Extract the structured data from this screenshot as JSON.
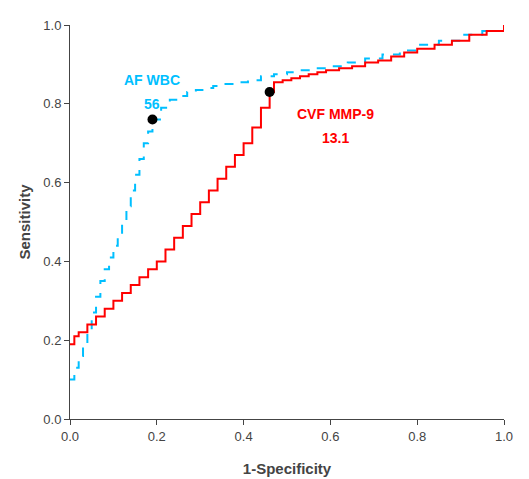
{
  "chart_data": {
    "type": "line",
    "xlabel": "1-Specificity",
    "ylabel": "Sensitivity",
    "xlim": [
      0.0,
      1.0
    ],
    "ylim": [
      0.0,
      1.0
    ],
    "xticks": [
      {
        "value": 0.0,
        "label": "0.0"
      },
      0.2,
      0.4,
      0.6,
      0.8,
      {
        "value": 1.0,
        "label": "1.0"
      }
    ],
    "yticks": [
      {
        "value": 0.0,
        "label": "0.0"
      },
      0.2,
      0.4,
      0.6,
      0.8,
      {
        "value": 1.0,
        "label": "1.0"
      }
    ],
    "grid": false,
    "series": [
      {
        "type": "step",
        "color": "#00BFFF",
        "line_style": "dashed",
        "x": [
          0.0,
          0.01,
          0.02,
          0.03,
          0.04,
          0.05,
          0.06,
          0.07,
          0.08,
          0.09,
          0.1,
          0.11,
          0.12,
          0.13,
          0.14,
          0.15,
          0.16,
          0.17,
          0.18,
          0.19,
          0.21,
          0.23,
          0.25,
          0.27,
          0.29,
          0.31,
          0.33,
          0.35,
          0.38,
          0.41,
          0.44,
          0.47,
          0.5,
          0.53,
          0.56,
          0.6,
          0.64,
          0.68,
          0.72,
          0.76,
          0.8,
          0.85,
          0.9,
          0.95,
          1.0
        ],
        "values": [
          0.1,
          0.13,
          0.16,
          0.19,
          0.22,
          0.27,
          0.31,
          0.35,
          0.38,
          0.41,
          0.44,
          0.47,
          0.5,
          0.54,
          0.58,
          0.62,
          0.66,
          0.7,
          0.73,
          0.76,
          0.79,
          0.81,
          0.82,
          0.83,
          0.835,
          0.84,
          0.845,
          0.85,
          0.855,
          0.86,
          0.87,
          0.875,
          0.88,
          0.885,
          0.89,
          0.895,
          0.905,
          0.915,
          0.925,
          0.935,
          0.95,
          0.96,
          0.975,
          0.985,
          1.0
        ]
      },
      {
        "type": "step",
        "color": "#FF0000",
        "line_style": "solid",
        "x": [
          0.0,
          0.01,
          0.02,
          0.04,
          0.06,
          0.08,
          0.1,
          0.12,
          0.14,
          0.16,
          0.18,
          0.2,
          0.22,
          0.24,
          0.26,
          0.28,
          0.3,
          0.32,
          0.34,
          0.36,
          0.38,
          0.4,
          0.42,
          0.44,
          0.46,
          0.47,
          0.49,
          0.51,
          0.53,
          0.55,
          0.57,
          0.59,
          0.62,
          0.65,
          0.68,
          0.71,
          0.74,
          0.77,
          0.8,
          0.84,
          0.88,
          0.92,
          0.96,
          1.0
        ],
        "values": [
          0.19,
          0.21,
          0.22,
          0.24,
          0.26,
          0.28,
          0.3,
          0.32,
          0.34,
          0.36,
          0.38,
          0.4,
          0.43,
          0.46,
          0.49,
          0.52,
          0.55,
          0.58,
          0.61,
          0.64,
          0.67,
          0.7,
          0.74,
          0.79,
          0.83,
          0.855,
          0.86,
          0.865,
          0.87,
          0.875,
          0.88,
          0.885,
          0.89,
          0.895,
          0.905,
          0.91,
          0.92,
          0.93,
          0.94,
          0.95,
          0.96,
          0.975,
          0.985,
          1.0
        ]
      },
      {
        "type": "scatter",
        "color": "black",
        "marker": "circle",
        "x": [
          0.19,
          0.46
        ],
        "values": [
          0.76,
          0.83
        ]
      }
    ],
    "annotations": [
      {
        "text": "AF WBC",
        "x": 0.19,
        "y": 0.76,
        "color": "#00BFFF"
      },
      {
        "text": "56",
        "x": 0.19,
        "y": 0.76,
        "color": "#00BFFF"
      },
      {
        "text": "CVF MMP-9",
        "x": 0.46,
        "y": 0.83,
        "color": "#FF0000"
      },
      {
        "text": "13.1",
        "x": 0.46,
        "y": 0.83,
        "color": "#FF0000"
      }
    ]
  }
}
